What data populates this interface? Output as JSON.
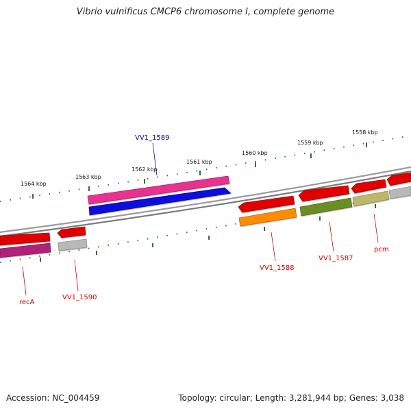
{
  "title": "Vibrio vulnificus CMCP6 chromosome I, complete genome",
  "footer": {
    "accession": "Accession: NC_004459",
    "summary": "Topology: circular; Length: 3,281,944 bp; Genes: 3,038"
  },
  "colors": {
    "backbone": "#7a7a7a",
    "tick": "#1f7a1f",
    "label_red": "#cc0000",
    "label_blue": "#0000aa",
    "gene_red": "#e00000",
    "gene_pink": "#e8338f",
    "gene_magenta": "#b0207a",
    "gene_blue": "#1010dd",
    "gene_orange": "#ff8c00",
    "gene_olive": "#6b8e23",
    "gene_khaki": "#bdb76b",
    "gene_gray": "#b8b8b8"
  },
  "kbp_labels": [
    "1564 kbp",
    "1563 kbp",
    "1562 kbp",
    "1561 kbp",
    "1560 kbp",
    "1559 kbp",
    "1558 kbp"
  ],
  "gene_labels": [
    "VV1_1589",
    "recA",
    "VV1_1590",
    "VV1_1588",
    "VV1_1587",
    "pcm"
  ]
}
